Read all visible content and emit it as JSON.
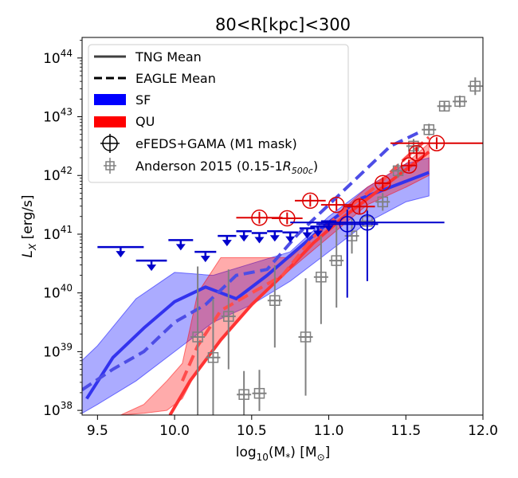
{
  "chart_data": {
    "type": "line",
    "title": "80<R[kpc]<300",
    "xlabel_main": "log",
    "xlabel_sub": "10",
    "xlabel_rest": "(M",
    "xlabel_star": "*",
    "xlabel_unit": ") [M",
    "xlabel_sun": "⊙",
    "xlabel_close": "]",
    "ylabel_main": "L",
    "ylabel_sub": "X",
    "ylabel_unit": " [erg/s]",
    "y_scale": "log",
    "xlim": [
      9.4,
      12.0
    ],
    "ylim_log": [
      37.92,
      44.35
    ],
    "x_ticks": [
      9.5,
      10.0,
      10.5,
      11.0,
      11.5,
      12.0
    ],
    "x_tick_labels": [
      "9.5",
      "10.0",
      "10.5",
      "11.0",
      "11.5",
      "12.0"
    ],
    "y_ticks_log": [
      38,
      39,
      40,
      41,
      42,
      43,
      44
    ],
    "y_tick_base": "10",
    "y_tick_exps": [
      "38",
      "39",
      "40",
      "41",
      "42",
      "43",
      "44"
    ],
    "colors": {
      "sf_band": "#0000ff",
      "qu_band": "#ff0000",
      "sf_line": "#3333ee",
      "qu_line": "#ff3333",
      "sf_dash": "#4d4de6",
      "qu_dash": "#ff4d4d",
      "obs_sf": "#0000cc",
      "obs_qu": "#dd0000",
      "anderson": "#808080"
    },
    "legend": {
      "placement": "upper-left",
      "entries": [
        {
          "label": "TNG Mean",
          "kind": "solid"
        },
        {
          "label": "EAGLE Mean",
          "kind": "dashed"
        },
        {
          "label": "SF",
          "kind": "patch-blue"
        },
        {
          "label": "QU",
          "kind": "patch-red"
        },
        {
          "label": "eFEDS+GAMA (M1 mask)",
          "kind": "crosshair"
        },
        {
          "label": "Anderson 2015 (0.15-1",
          "label_r": "R",
          "label_sub": "500c",
          "label_close": ")",
          "kind": "square"
        }
      ]
    },
    "sf_band": {
      "x": [
        9.4,
        9.5,
        9.75,
        10.0,
        10.25,
        10.5,
        10.75,
        11.0,
        11.25,
        11.5,
        11.65
      ],
      "upper": [
        38.85,
        39.1,
        39.9,
        40.35,
        40.3,
        40.5,
        40.7,
        41.3,
        41.8,
        42.2,
        42.3
      ],
      "lower": [
        37.95,
        38.1,
        38.5,
        39.0,
        39.5,
        39.8,
        40.2,
        40.7,
        41.2,
        41.55,
        41.65
      ]
    },
    "qu_band": {
      "x": [
        9.65,
        9.8,
        9.95,
        10.05,
        10.15,
        10.3,
        10.5,
        10.75,
        11.0,
        11.25,
        11.5,
        11.65
      ],
      "upper": [
        37.92,
        38.1,
        38.5,
        38.8,
        40.0,
        40.6,
        40.6,
        40.6,
        41.2,
        41.8,
        42.2,
        42.55
      ],
      "lower": [
        37.92,
        37.95,
        38.0,
        38.2,
        38.7,
        39.2,
        39.8,
        40.4,
        40.95,
        41.5,
        41.8,
        42.0
      ]
    },
    "series": [
      {
        "name": "TNG Mean",
        "population": "SF",
        "style": "solid",
        "x": [
          9.43,
          9.6,
          9.8,
          10.0,
          10.2,
          10.4,
          10.6,
          10.8,
          11.0,
          11.2,
          11.4,
          11.65
        ],
        "y_log": [
          38.2,
          38.9,
          39.4,
          39.85,
          40.1,
          39.9,
          40.3,
          40.75,
          41.2,
          41.6,
          41.8,
          42.05
        ]
      },
      {
        "name": "EAGLE Mean",
        "population": "SF",
        "style": "dashed",
        "x": [
          9.4,
          9.6,
          9.8,
          10.0,
          10.2,
          10.4,
          10.6,
          10.8,
          11.0,
          11.2,
          11.4,
          11.6
        ],
        "y_log": [
          38.35,
          38.7,
          39.0,
          39.5,
          39.8,
          40.3,
          40.4,
          41.0,
          41.5,
          42.0,
          42.5,
          42.75
        ]
      },
      {
        "name": "TNG Mean",
        "population": "QU",
        "style": "solid",
        "x": [
          9.97,
          10.1,
          10.3,
          10.5,
          10.7,
          10.9,
          11.1,
          11.3,
          11.5,
          11.65
        ],
        "y_log": [
          37.92,
          38.5,
          39.2,
          39.8,
          40.3,
          40.85,
          41.3,
          41.7,
          42.1,
          42.4
        ]
      },
      {
        "name": "EAGLE Mean",
        "population": "QU",
        "style": "dashed",
        "x": [
          10.05,
          10.15,
          10.3,
          10.5,
          10.7,
          10.9,
          11.1,
          11.3,
          11.5,
          11.65
        ],
        "y_log": [
          38.5,
          39.1,
          39.7,
          40.0,
          40.3,
          40.95,
          41.4,
          41.8,
          42.3,
          42.65
        ]
      }
    ],
    "upper_limits_sf": [
      {
        "x": 9.65,
        "xerr": 0.15,
        "y_log": 40.78
      },
      {
        "x": 9.85,
        "xerr": 0.1,
        "y_log": 40.55
      },
      {
        "x": 10.04,
        "xerr": 0.08,
        "y_log": 40.9
      },
      {
        "x": 10.2,
        "xerr": 0.07,
        "y_log": 40.7
      },
      {
        "x": 10.34,
        "xerr": 0.06,
        "y_log": 40.97
      },
      {
        "x": 10.45,
        "xerr": 0.05,
        "y_log": 41.05
      },
      {
        "x": 10.55,
        "xerr": 0.05,
        "y_log": 41.02
      },
      {
        "x": 10.65,
        "xerr": 0.05,
        "y_log": 41.05
      },
      {
        "x": 10.75,
        "xerr": 0.05,
        "y_log": 41.03
      },
      {
        "x": 10.86,
        "xerr": 0.05,
        "y_log": 41.1
      },
      {
        "x": 10.93,
        "xerr": 0.05,
        "y_log": 41.13
      },
      {
        "x": 11.0,
        "xerr": 0.05,
        "y_log": 41.22
      }
    ],
    "efeds_qu": [
      {
        "x": 10.55,
        "xerr": 0.15,
        "y_log": 41.28,
        "yerr": 0.1
      },
      {
        "x": 10.73,
        "xerr": 0.1,
        "y_log": 41.27,
        "yerr": 0.1
      },
      {
        "x": 10.88,
        "xerr": 0.1,
        "y_log": 41.57,
        "yerr": 0.1
      },
      {
        "x": 11.05,
        "xerr": 0.1,
        "y_log": 41.5,
        "yerr": 0.1
      },
      {
        "x": 11.2,
        "xerr": 0.1,
        "y_log": 41.47,
        "yerr": 0.12
      },
      {
        "x": 11.35,
        "xerr": 0.05,
        "y_log": 41.87,
        "yerr": 0.1
      },
      {
        "x": 11.52,
        "xerr": 0.05,
        "y_log": 42.17,
        "yerr": 0.1
      },
      {
        "x": 11.57,
        "xerr": 0.05,
        "y_log": 42.38,
        "yerr": 0.1
      },
      {
        "x": 11.7,
        "xerr": 0.3,
        "y_log": 42.55,
        "yerr": 0.1
      }
    ],
    "efeds_sf": [
      {
        "x": 11.12,
        "xerr": 0.2,
        "y_log": 41.17,
        "yerr_lo": 1.25,
        "yerr_hi": 0.25
      },
      {
        "x": 11.25,
        "xerr": 0.5,
        "y_log": 41.2,
        "yerr_lo": 1.0,
        "yerr_hi": 0.2
      }
    ],
    "anderson": [
      {
        "x": 10.15,
        "y_log": 39.25,
        "yerr_lo": 1.4,
        "yerr_hi": 1.2
      },
      {
        "x": 10.25,
        "y_log": 38.9,
        "yerr_lo": 1.0,
        "yerr_hi": 1.0
      },
      {
        "x": 10.35,
        "y_log": 39.6,
        "yerr_lo": 0.9,
        "yerr_hi": 0.8
      },
      {
        "x": 10.45,
        "y_log": 38.27,
        "yerr_lo": 0.35,
        "yerr_hi": 0.4
      },
      {
        "x": 10.55,
        "y_log": 38.29,
        "yerr_lo": 0.3,
        "yerr_hi": 0.4
      },
      {
        "x": 10.65,
        "y_log": 39.87,
        "yerr_lo": 0.8,
        "yerr_hi": 0.6
      },
      {
        "x": 10.85,
        "y_log": 39.25,
        "yerr_lo": 1.0,
        "yerr_hi": 1.0
      },
      {
        "x": 10.95,
        "y_log": 40.27,
        "yerr_lo": 0.8,
        "yerr_hi": 0.7
      },
      {
        "x": 11.05,
        "y_log": 40.55,
        "yerr_lo": 0.8,
        "yerr_hi": 0.6
      },
      {
        "x": 11.15,
        "y_log": 40.97,
        "yerr_lo": 0.3,
        "yerr_hi": 0.3
      },
      {
        "x": 11.25,
        "y_log": 41.22,
        "yerr_lo": 0.2,
        "yerr_hi": 0.2
      },
      {
        "x": 11.35,
        "y_log": 41.55,
        "yerr_lo": 0.15,
        "yerr_hi": 0.15
      },
      {
        "x": 11.45,
        "y_log": 42.08,
        "yerr_lo": 0.12,
        "yerr_hi": 0.12
      },
      {
        "x": 11.55,
        "y_log": 42.5,
        "yerr_lo": 0.12,
        "yerr_hi": 0.12
      },
      {
        "x": 11.65,
        "y_log": 42.78,
        "yerr_lo": 0.1,
        "yerr_hi": 0.1
      },
      {
        "x": 11.75,
        "y_log": 43.18,
        "yerr_lo": 0.08,
        "yerr_hi": 0.08
      },
      {
        "x": 11.85,
        "y_log": 43.26,
        "yerr_lo": 0.1,
        "yerr_hi": 0.1
      },
      {
        "x": 11.95,
        "y_log": 43.52,
        "yerr_lo": 0.15,
        "yerr_hi": 0.15
      }
    ]
  }
}
